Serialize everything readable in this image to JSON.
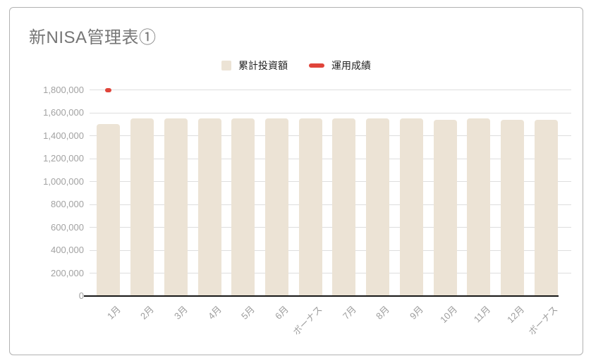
{
  "title": "新NISA管理表①",
  "chart_data": {
    "type": "bar",
    "title": "新NISA管理表①",
    "categories": [
      "1月",
      "2月",
      "3月",
      "4月",
      "5月",
      "6月",
      "ボーナス",
      "7月",
      "8月",
      "9月",
      "10月",
      "11月",
      "12月",
      "ボーナス"
    ],
    "series": [
      {
        "name": "累計投資額",
        "type": "bar",
        "color": "#ECE3D5",
        "values": [
          1500000,
          1550000,
          1550000,
          1550000,
          1550000,
          1550000,
          1550000,
          1550000,
          1550000,
          1550000,
          1540000,
          1550000,
          1540000,
          1540000
        ]
      },
      {
        "name": "運用成績",
        "type": "line",
        "marker": "dash",
        "color": "#E0443A",
        "values": [
          1800000,
          null,
          null,
          null,
          null,
          null,
          null,
          null,
          null,
          null,
          null,
          null,
          null,
          null
        ]
      }
    ],
    "ylim": [
      0,
      1800000
    ],
    "yticks": [
      0,
      200000,
      400000,
      600000,
      800000,
      1000000,
      1200000,
      1400000,
      1600000,
      1800000
    ],
    "ytick_labels": [
      "0",
      "200,000",
      "400,000",
      "600,000",
      "800,000",
      "1,000,000",
      "1,200,000",
      "1,400,000",
      "1,600,000",
      "1,800,000"
    ],
    "grid": true,
    "legend_position": "top",
    "colors": {
      "grid": "#dedede",
      "axis_line": "#161616",
      "tick_text": "#a2a2a2",
      "title_text": "#767676",
      "legend_text": "#222222"
    }
  }
}
